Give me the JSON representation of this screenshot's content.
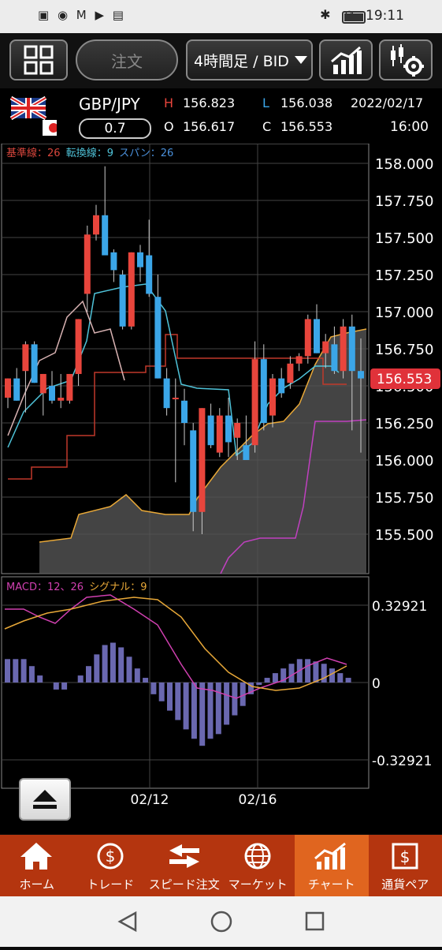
{
  "status_bar": {
    "time": "19:11"
  },
  "toolbar": {
    "order_label": "注文",
    "period_label": "4時間足 / BID"
  },
  "info": {
    "pair": "GBP/JPY",
    "spread": "0.7",
    "high_label": "H",
    "high": "156.823",
    "open_label": "O",
    "open": "156.617",
    "low_label": "L",
    "low": "156.038",
    "close_label": "C",
    "close": "156.553",
    "date": "2022/02/17",
    "time": "16:00"
  },
  "chart": {
    "ichimoku_legend": {
      "kijun": "基準線：26",
      "tenkan": "転換線：9",
      "span": "スパン：26"
    },
    "price_ticks": [
      "158.000",
      "157.750",
      "157.500",
      "157.250",
      "157.000",
      "156.750",
      "156.500",
      "156.250",
      "156.000",
      "155.750",
      "155.500"
    ],
    "current_price": "156.553",
    "macd_legend": {
      "macd": "MACD：12、26",
      "signal": "シグナル：9"
    },
    "macd_ticks": [
      "0.32921",
      "0",
      "-0.32921"
    ],
    "date_labels": [
      "02/12",
      "02/16"
    ],
    "colors": {
      "up": "#e8453c",
      "down": "#3ba6e8",
      "kijun": "#c0392b",
      "tenkan": "#4fc3d9",
      "chikou": "#d9b3b3",
      "span_a": "#e8a838",
      "span_b": "#c040c0",
      "cloud": "#555555",
      "macd": "#d040b0",
      "signal": "#e8a838",
      "histogram": "#6a68b0",
      "current_price_bg": "#e0323a"
    }
  },
  "tabs": [
    {
      "label": "ホーム",
      "icon": "home-icon"
    },
    {
      "label": "トレード",
      "icon": "trade-yen-icon"
    },
    {
      "label": "スピード注文",
      "icon": "speed-order-arrows-icon"
    },
    {
      "label": "マーケット",
      "icon": "globe-icon"
    },
    {
      "label": "チャート",
      "icon": "chart-icon"
    },
    {
      "label": "通貨ペア",
      "icon": "currency-pair-icon"
    }
  ]
}
